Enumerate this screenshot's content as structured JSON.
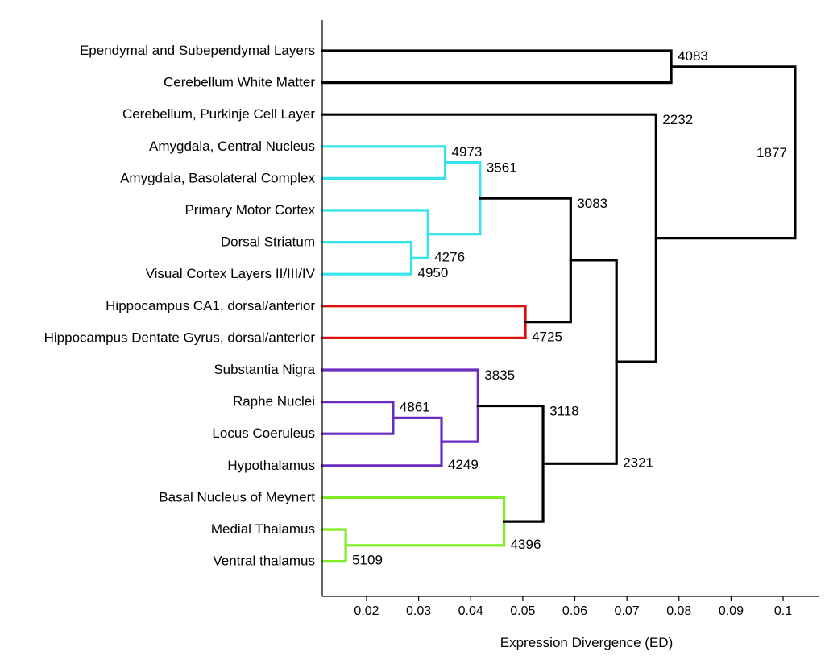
{
  "chart_data": {
    "type": "dendrogram",
    "orientation": "leaves-left",
    "xlabel": "Expression Divergence (ED)",
    "xlim": [
      0.0115,
      0.1068
    ],
    "xticks": [
      0.02,
      0.03,
      0.04,
      0.05,
      0.06,
      0.07,
      0.08,
      0.09,
      0.1
    ],
    "xtick_labels": [
      "0.02",
      "0.03",
      "0.04",
      "0.05",
      "0.06",
      "0.07",
      "0.08",
      "0.09",
      "0.1"
    ],
    "colors": {
      "black": "#000000",
      "cyan": "#33e3ee",
      "red": "#dd1111",
      "purple": "#6a2cc4",
      "green": "#7fec24"
    },
    "leaves": [
      {
        "id": "L0",
        "label": "Ependymal and Subependymal Layers"
      },
      {
        "id": "L1",
        "label": "Cerebellum White Matter"
      },
      {
        "id": "L2",
        "label": "Cerebellum, Purkinje Cell Layer"
      },
      {
        "id": "L3",
        "label": "Amygdala, Central Nucleus"
      },
      {
        "id": "L4",
        "label": "Amygdala, Basolateral Complex"
      },
      {
        "id": "L5",
        "label": "Primary Motor Cortex"
      },
      {
        "id": "L6",
        "label": "Dorsal Striatum"
      },
      {
        "id": "L7",
        "label": "Visual Cortex Layers II/III/IV"
      },
      {
        "id": "L8",
        "label": "Hippocampus CA1, dorsal/anterior"
      },
      {
        "id": "L9",
        "label": "Hippocampus Dentate Gyrus, dorsal/anterior"
      },
      {
        "id": "L10",
        "label": "Substantia Nigra"
      },
      {
        "id": "L11",
        "label": "Raphe Nuclei"
      },
      {
        "id": "L12",
        "label": "Locus Coeruleus"
      },
      {
        "id": "L13",
        "label": "Hypothalamus"
      },
      {
        "id": "L14",
        "label": "Basal Nucleus of Meynert"
      },
      {
        "id": "L15",
        "label": "Medial Thalamus"
      },
      {
        "id": "L16",
        "label": "Ventral thalamus"
      }
    ],
    "merges": [
      {
        "id": "N4083",
        "label": "4083",
        "height": 0.0785,
        "children": [
          "L0",
          "L1"
        ],
        "color": "black",
        "label_pos": "top-right"
      },
      {
        "id": "N4973",
        "label": "4973",
        "height": 0.0351,
        "children": [
          "L3",
          "L4"
        ],
        "color": "cyan",
        "label_pos": "top-right"
      },
      {
        "id": "N4950",
        "label": "4950",
        "height": 0.0286,
        "children": [
          "L6",
          "L7"
        ],
        "color": "cyan",
        "label_pos": "bottom-right"
      },
      {
        "id": "N4276",
        "label": "4276",
        "height": 0.0318,
        "children": [
          "L5",
          "N4950"
        ],
        "color": "cyan",
        "label_pos": "bottom-right"
      },
      {
        "id": "N3561",
        "label": "3561",
        "height": 0.0418,
        "children": [
          "N4973",
          "N4276"
        ],
        "color": "cyan",
        "label_pos": "top-right"
      },
      {
        "id": "N4725",
        "label": "4725",
        "height": 0.0505,
        "children": [
          "L8",
          "L9"
        ],
        "color": "red",
        "label_pos": "bottom-right"
      },
      {
        "id": "N3083",
        "label": "3083",
        "height": 0.0592,
        "children": [
          "N3561",
          "N4725"
        ],
        "color": "black",
        "label_pos": "top-right"
      },
      {
        "id": "N4861",
        "label": "4861",
        "height": 0.0251,
        "children": [
          "L11",
          "L12"
        ],
        "color": "purple",
        "label_pos": "top-right"
      },
      {
        "id": "N4249",
        "label": "4249",
        "height": 0.0344,
        "children": [
          "N4861",
          "L13"
        ],
        "color": "purple",
        "label_pos": "bottom-right"
      },
      {
        "id": "N3835",
        "label": "3835",
        "height": 0.0414,
        "children": [
          "L10",
          "N4249"
        ],
        "color": "purple",
        "label_pos": "top-right"
      },
      {
        "id": "N5109",
        "label": "5109",
        "height": 0.016,
        "children": [
          "L15",
          "L16"
        ],
        "color": "green",
        "label_pos": "bottom-right"
      },
      {
        "id": "N4396",
        "label": "4396",
        "height": 0.0464,
        "children": [
          "L14",
          "N5109"
        ],
        "color": "green",
        "label_pos": "bottom-right"
      },
      {
        "id": "N3118",
        "label": "3118",
        "height": 0.0539,
        "children": [
          "N3835",
          "N4396"
        ],
        "color": "black",
        "label_pos": "top-right"
      },
      {
        "id": "N2321",
        "label": "2321",
        "height": 0.068,
        "children": [
          "N3083",
          "N3118"
        ],
        "color": "black",
        "label_pos": "bottom-right"
      },
      {
        "id": "N2232",
        "label": "2232",
        "height": 0.0756,
        "children": [
          "L2",
          "N2321"
        ],
        "color": "black",
        "label_pos": "top-right"
      },
      {
        "id": "N1877",
        "label": "1877",
        "height": 0.1023,
        "children": [
          "N4083",
          "N2232"
        ],
        "color": "black",
        "label_pos": "left"
      }
    ]
  }
}
